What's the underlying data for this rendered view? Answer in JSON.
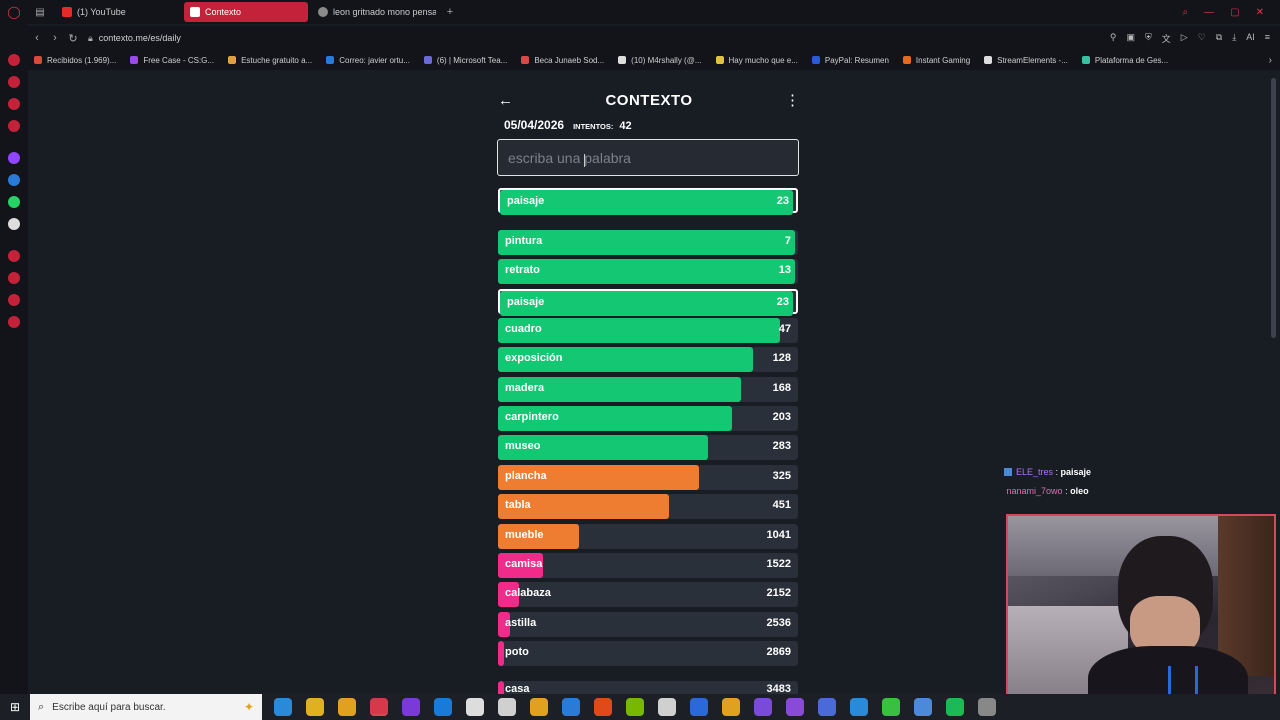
{
  "browser": {
    "tabs": [
      {
        "label": "(1) YouTube",
        "color": "#e62a2a",
        "active": false
      },
      {
        "label": "Contexto",
        "color": "#ffffff",
        "active": true
      },
      {
        "label": "leon gritnado mono pensa",
        "color": "#8a8a8a",
        "active": false
      }
    ],
    "new_tab": "+",
    "url": "contexto.me/es/daily",
    "bookmarks": [
      {
        "label": "Recibidos (1.969)...",
        "color": "#d64a3a"
      },
      {
        "label": "Free Case - CS:G...",
        "color": "#9a4ae8"
      },
      {
        "label": "Estuche gratuito a...",
        "color": "#e0a040"
      },
      {
        "label": "Correo: javier ortu...",
        "color": "#2a7ad8"
      },
      {
        "label": "(6) | Microsoft Tea...",
        "color": "#6a6ad8"
      },
      {
        "label": "Beca Junaeb Sod...",
        "color": "#d84a4a"
      },
      {
        "label": "(10) M4rshally (@...",
        "color": "#dddddd"
      },
      {
        "label": "Hay mucho que e...",
        "color": "#e0c040"
      },
      {
        "label": "PayPal: Resumen",
        "color": "#2a5ad8"
      },
      {
        "label": "Instant Gaming",
        "color": "#e86a1a"
      },
      {
        "label": "StreamElements -...",
        "color": "#dddddd"
      },
      {
        "label": "Plataforma de Ges...",
        "color": "#3ac0a0"
      }
    ]
  },
  "game": {
    "title": "CONTEXTO",
    "back_icon": "←",
    "menu_icon": "⋮",
    "date": "05/04/2026",
    "attempts_label": "INTENTOS:",
    "attempts": "42",
    "input_placeholder": "escriba una palabra",
    "last_guess": {
      "word": "paisaje",
      "rank": 23,
      "fill": 0.99,
      "color": "#14c873"
    },
    "guesses": [
      {
        "word": "pintura",
        "rank": 7,
        "fill": 0.99,
        "color": "#14c873"
      },
      {
        "word": "retrato",
        "rank": 13,
        "fill": 0.99,
        "color": "#14c873"
      },
      {
        "word": "paisaje",
        "rank": 23,
        "fill": 0.99,
        "color": "#14c873",
        "highlight": true
      },
      {
        "word": "cuadro",
        "rank": 47,
        "fill": 0.94,
        "color": "#14c873"
      },
      {
        "word": "exposición",
        "rank": 128,
        "fill": 0.85,
        "color": "#14c873"
      },
      {
        "word": "madera",
        "rank": 168,
        "fill": 0.81,
        "color": "#14c873"
      },
      {
        "word": "carpintero",
        "rank": 203,
        "fill": 0.78,
        "color": "#14c873"
      },
      {
        "word": "museo",
        "rank": 283,
        "fill": 0.7,
        "color": "#14c873"
      },
      {
        "word": "plancha",
        "rank": 325,
        "fill": 0.67,
        "color": "#ef7d31"
      },
      {
        "word": "tabla",
        "rank": 451,
        "fill": 0.57,
        "color": "#ef7d31"
      },
      {
        "word": "mueble",
        "rank": 1041,
        "fill": 0.27,
        "color": "#ef7d31"
      },
      {
        "word": "camisa",
        "rank": 1522,
        "fill": 0.15,
        "color": "#f02b8a"
      },
      {
        "word": "calabaza",
        "rank": 2152,
        "fill": 0.07,
        "color": "#f02b8a"
      },
      {
        "word": "astilla",
        "rank": 2536,
        "fill": 0.04,
        "color": "#f02b8a"
      },
      {
        "word": "poto",
        "rank": 2869,
        "fill": 0.02,
        "color": "#f02b8a"
      },
      {
        "word": "casa",
        "rank": 3483,
        "fill": 0.02,
        "color": "#f02b8a"
      }
    ]
  },
  "chat": [
    {
      "user": "ELE_tres",
      "message": "paisaje"
    },
    {
      "user": "nanami_7owo",
      "message": "oleo"
    }
  ],
  "taskbar": {
    "search_placeholder": "Escribe aquí para buscar.",
    "apps": [
      "#2a8ad8",
      "#e0b020",
      "#e0a020",
      "#d63a4a",
      "#7a3ad8",
      "#1a7ad8",
      "#dddddd",
      "#d0d0d0",
      "#e0a020",
      "#2a7ad8",
      "#e04a1a",
      "#76b900",
      "#d0d0d0",
      "#2a6ad8",
      "#e0a020",
      "#7a4ad8",
      "#8a4ad8",
      "#4a6ad8",
      "#2a8ad8",
      "#3ac040",
      "#4a8ad8",
      "#1db954",
      "#888888"
    ]
  }
}
